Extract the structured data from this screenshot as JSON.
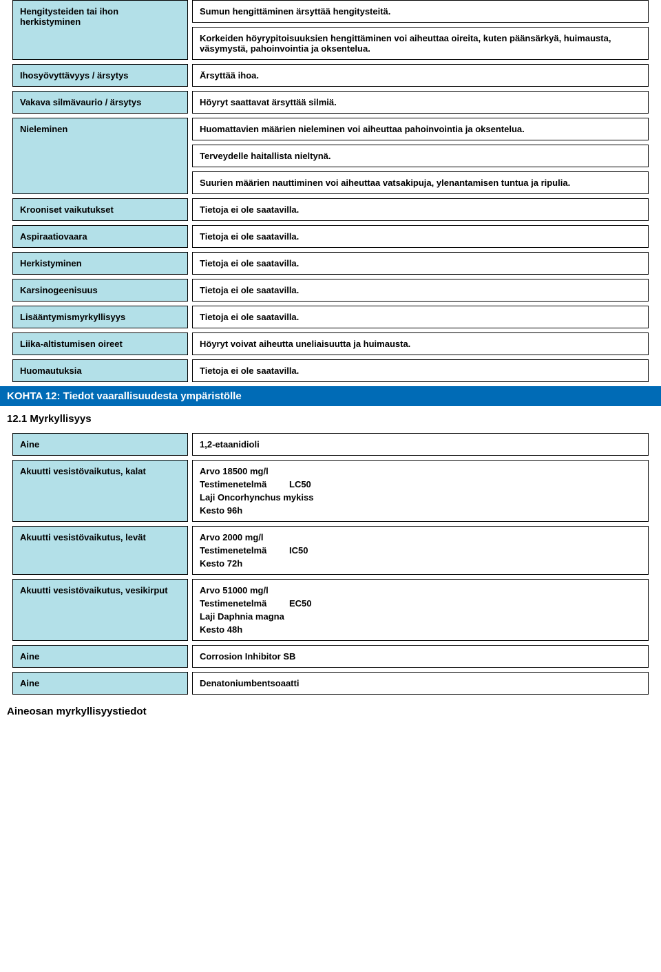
{
  "rows1": {
    "r0": {
      "label": "Hengitysteiden tai ihon herkistyminen",
      "v0": "Sumun hengittäminen ärsyttää hengitysteitä.",
      "v1": "Korkeiden höyrypitoisuuksien hengittäminen voi aiheuttaa oireita, kuten päänsärkyä, huimausta, väsymystä, pahoinvointia ja oksentelua."
    },
    "r1": {
      "label": "Ihosyövyttävyys / ärsytys",
      "v0": "Ärsyttää ihoa."
    },
    "r2": {
      "label": "Vakava silmävaurio / ärsytys",
      "v0": "Höyryt saattavat ärsyttää silmiä."
    },
    "r3": {
      "label": "Nieleminen",
      "v0": "Huomattavien määrien nieleminen voi aiheuttaa pahoinvointia ja oksentelua.",
      "v1": "Terveydelle haitallista nieltynä.",
      "v2": "Suurien määrien nauttiminen voi aiheuttaa vatsakipuja, ylenantamisen tuntua ja ripulia."
    },
    "r4": {
      "label": "Krooniset vaikutukset",
      "v0": "Tietoja ei ole saatavilla."
    },
    "r5": {
      "label": "Aspiraatiovaara",
      "v0": "Tietoja ei ole saatavilla."
    },
    "r6": {
      "label": "Herkistyminen",
      "v0": "Tietoja ei ole saatavilla."
    },
    "r7": {
      "label": "Karsinogeenisuus",
      "v0": "Tietoja ei ole saatavilla."
    },
    "r8": {
      "label": "Lisääntymismyrkyllisyys",
      "v0": "Tietoja ei ole saatavilla."
    },
    "r9": {
      "label": "Liika-altistumisen oireet",
      "v0": "Höyryt voivat aiheutta uneliaisuutta ja huimausta."
    },
    "r10": {
      "label": "Huomautuksia",
      "v0": "Tietoja ei ole saatavilla."
    }
  },
  "section12": {
    "header": "KOHTA 12: Tiedot vaarallisuudesta ympäristölle",
    "sub1": "12.1 Myrkyllisyys"
  },
  "rows2": {
    "aine1": {
      "label": "Aine",
      "v0": "1,2-etaanidioli"
    },
    "fish": {
      "label": "Akuutti vesistövaikutus, kalat",
      "v0": "Arvo  18500 mg/l",
      "v1a": "Testimenetelmä",
      "v1b": "LC50",
      "v2": "Laji  Oncorhynchus mykiss",
      "v3": "Kesto  96h"
    },
    "algae": {
      "label": "Akuutti vesistövaikutus, levät",
      "v0": "Arvo  2000 mg/l",
      "v1a": "Testimenetelmä",
      "v1b": "IC50",
      "v2": "Kesto  72h"
    },
    "daphnia": {
      "label": "Akuutti vesistövaikutus, vesikirput",
      "v0": "Arvo  51000 mg/l",
      "v1a": "Testimenetelmä",
      "v1b": "EC50",
      "v2": "Laji  Daphnia magna",
      "v3": "Kesto  48h"
    },
    "aine2": {
      "label": "Aine",
      "v0": "Corrosion Inhibitor SB"
    },
    "aine3": {
      "label": "Aine",
      "v0": "Denatoniumbentsoaatti"
    }
  },
  "footer": {
    "heading": "Aineosan myrkyllisyystiedot"
  }
}
